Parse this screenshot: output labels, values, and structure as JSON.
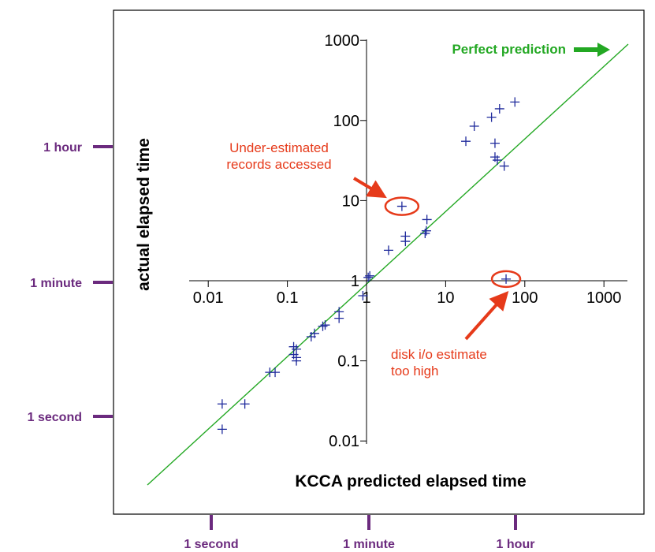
{
  "chart_data": {
    "type": "scatter",
    "scale": "log-log",
    "xlabel": "KCCA predicted elapsed time",
    "ylabel": "actual elapsed time",
    "xlim": [
      0.003,
      1600
    ],
    "ylim": [
      0.003,
      1200
    ],
    "x_ticks": [
      {
        "value": 0.01,
        "label": "0.01"
      },
      {
        "value": 0.1,
        "label": "0.1"
      },
      {
        "value": 1,
        "label": "1"
      },
      {
        "value": 10,
        "label": "10"
      },
      {
        "value": 100,
        "label": "100"
      },
      {
        "value": 1000,
        "label": "1000"
      }
    ],
    "y_ticks": [
      {
        "value": 0.01,
        "label": "0.01"
      },
      {
        "value": 0.1,
        "label": "0.1"
      },
      {
        "value": 1,
        "label": "1"
      },
      {
        "value": 10,
        "label": "10"
      },
      {
        "value": 100,
        "label": "100"
      },
      {
        "value": 1000,
        "label": "1000"
      }
    ],
    "series": [
      {
        "marker": "+",
        "color": "#1f2a9c",
        "points": [
          [
            0.015,
            0.029
          ],
          [
            0.015,
            0.014
          ],
          [
            0.029,
            0.029
          ],
          [
            0.06,
            0.072
          ],
          [
            0.07,
            0.072
          ],
          [
            0.12,
            0.12
          ],
          [
            0.13,
            0.14
          ],
          [
            0.13,
            0.11
          ],
          [
            0.13,
            0.1
          ],
          [
            0.12,
            0.15
          ],
          [
            0.2,
            0.2
          ],
          [
            0.22,
            0.22
          ],
          [
            0.28,
            0.27
          ],
          [
            0.3,
            0.28
          ],
          [
            0.45,
            0.34
          ],
          [
            0.45,
            0.41
          ],
          [
            0.9,
            0.65
          ],
          [
            1.05,
            1.1
          ],
          [
            1.1,
            1.15
          ],
          [
            1.9,
            2.4
          ],
          [
            2.8,
            8.5
          ],
          [
            3.1,
            3.1
          ],
          [
            3.1,
            3.6
          ],
          [
            5.5,
            3.9
          ],
          [
            5.7,
            4.2
          ],
          [
            5.8,
            5.8
          ],
          [
            18,
            55
          ],
          [
            23,
            85
          ],
          [
            38,
            110
          ],
          [
            42,
            52
          ],
          [
            42,
            35
          ],
          [
            45,
            32
          ],
          [
            48,
            140
          ],
          [
            55,
            27
          ],
          [
            58,
            1.05
          ],
          [
            75,
            170
          ]
        ]
      }
    ],
    "reference_line": {
      "label": "Perfect prediction",
      "color": "#23a823",
      "from": [
        0.003,
        0.003
      ],
      "to": [
        1000,
        1000
      ]
    },
    "highlights": [
      {
        "x": 2.8,
        "y": 8.5,
        "text_lines": [
          "Under-estimated",
          "records accessed"
        ]
      },
      {
        "x": 58,
        "y": 1.05,
        "text_lines": [
          "disk i/o estimate",
          "too high"
        ]
      }
    ],
    "time_markers_y": [
      {
        "value": 3600,
        "label": "1 hour"
      },
      {
        "value": 60,
        "label": "1 minute"
      },
      {
        "value": 1,
        "label": "1 second"
      }
    ],
    "time_markers_x": [
      {
        "value": 1,
        "label": "1 second"
      },
      {
        "value": 60,
        "label": "1 minute"
      },
      {
        "value": 3600,
        "label": "1 hour"
      }
    ],
    "colors": {
      "annotation": "#e63a1a",
      "marker_purple": "#6b2a7e",
      "points": "#1f2a9c",
      "line": "#23a823"
    }
  }
}
